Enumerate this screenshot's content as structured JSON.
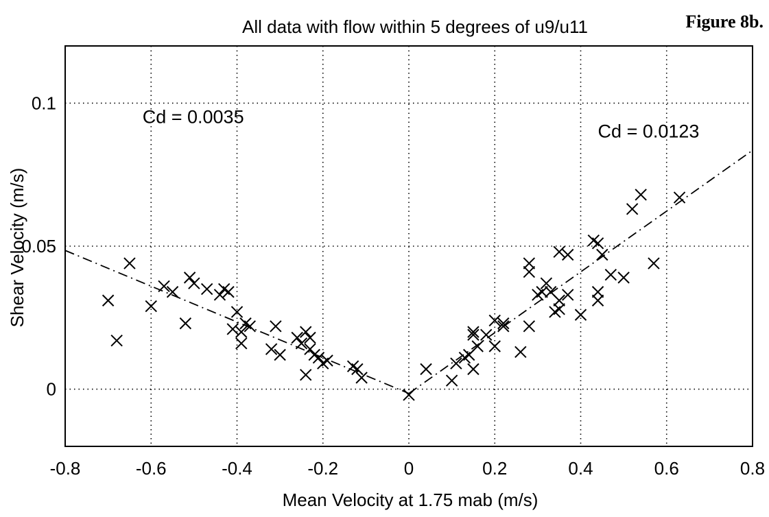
{
  "figure_label": "Figure 8b.",
  "chart_data": {
    "type": "scatter",
    "title": "All data with flow within 5 degrees of u9/u11",
    "xlabel": "Mean Velocity at 1.75 mab (m/s)",
    "ylabel": "Shear Velocity (m/s)",
    "xlim": [
      -0.8,
      0.8
    ],
    "ylim": [
      -0.02,
      0.12
    ],
    "xticks": [
      "-0.8",
      "-0.6",
      "-0.4",
      "-0.2",
      "0",
      "0.2",
      "0.4",
      "0.6",
      "0.8"
    ],
    "yticks": [
      "0",
      "0.05",
      "0.1"
    ],
    "grid": true,
    "annotations": [
      {
        "text": "Cd = 0.0035",
        "x": -0.62,
        "y": 0.093
      },
      {
        "text": "Cd = 0.0123",
        "x": 0.44,
        "y": 0.088
      }
    ],
    "fit_lines": [
      {
        "label": "Cd = 0.0035",
        "points": [
          [
            -0.8,
            0.0485
          ],
          [
            0.0,
            -0.0015
          ]
        ]
      },
      {
        "label": "Cd = 0.0123",
        "points": [
          [
            0.0,
            -0.0015
          ],
          [
            0.8,
            0.0835
          ]
        ]
      }
    ],
    "points": [
      [
        -0.7,
        0.031
      ],
      [
        -0.68,
        0.017
      ],
      [
        -0.65,
        0.044
      ],
      [
        -0.6,
        0.029
      ],
      [
        -0.57,
        0.036
      ],
      [
        -0.55,
        0.034
      ],
      [
        -0.52,
        0.023
      ],
      [
        -0.51,
        0.039
      ],
      [
        -0.5,
        0.037
      ],
      [
        -0.47,
        0.035
      ],
      [
        -0.44,
        0.033
      ],
      [
        -0.43,
        0.035
      ],
      [
        -0.42,
        0.034
      ],
      [
        -0.41,
        0.021
      ],
      [
        -0.4,
        0.027
      ],
      [
        -0.39,
        0.02
      ],
      [
        -0.39,
        0.016
      ],
      [
        -0.38,
        0.023
      ],
      [
        -0.37,
        0.022
      ],
      [
        -0.32,
        0.014
      ],
      [
        -0.31,
        0.022
      ],
      [
        -0.3,
        0.012
      ],
      [
        -0.26,
        0.018
      ],
      [
        -0.25,
        0.016
      ],
      [
        -0.24,
        0.02
      ],
      [
        -0.24,
        0.005
      ],
      [
        -0.23,
        0.018
      ],
      [
        -0.23,
        0.014
      ],
      [
        -0.22,
        0.012
      ],
      [
        -0.21,
        0.011
      ],
      [
        -0.2,
        0.009
      ],
      [
        -0.19,
        0.01
      ],
      [
        -0.13,
        0.008
      ],
      [
        -0.12,
        0.007
      ],
      [
        -0.11,
        0.004
      ],
      [
        0.0,
        -0.002
      ],
      [
        0.04,
        0.007
      ],
      [
        0.1,
        0.003
      ],
      [
        0.11,
        0.009
      ],
      [
        0.13,
        0.011
      ],
      [
        0.14,
        0.012
      ],
      [
        0.15,
        0.02
      ],
      [
        0.15,
        0.019
      ],
      [
        0.15,
        0.007
      ],
      [
        0.16,
        0.015
      ],
      [
        0.18,
        0.019
      ],
      [
        0.2,
        0.024
      ],
      [
        0.2,
        0.015
      ],
      [
        0.22,
        0.023
      ],
      [
        0.22,
        0.022
      ],
      [
        0.26,
        0.013
      ],
      [
        0.28,
        0.044
      ],
      [
        0.28,
        0.041
      ],
      [
        0.28,
        0.022
      ],
      [
        0.3,
        0.033
      ],
      [
        0.31,
        0.034
      ],
      [
        0.32,
        0.037
      ],
      [
        0.33,
        0.034
      ],
      [
        0.34,
        0.027
      ],
      [
        0.35,
        0.028
      ],
      [
        0.35,
        0.031
      ],
      [
        0.35,
        0.048
      ],
      [
        0.37,
        0.033
      ],
      [
        0.37,
        0.047
      ],
      [
        0.4,
        0.026
      ],
      [
        0.43,
        0.052
      ],
      [
        0.44,
        0.051
      ],
      [
        0.44,
        0.034
      ],
      [
        0.44,
        0.031
      ],
      [
        0.45,
        0.047
      ],
      [
        0.47,
        0.04
      ],
      [
        0.5,
        0.039
      ],
      [
        0.52,
        0.063
      ],
      [
        0.54,
        0.068
      ],
      [
        0.57,
        0.044
      ],
      [
        0.63,
        0.067
      ]
    ]
  }
}
